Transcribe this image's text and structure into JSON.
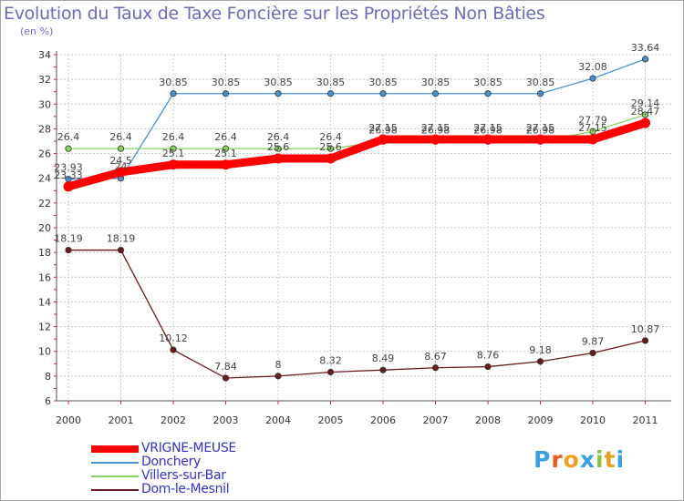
{
  "chart_data": {
    "type": "line",
    "title": "Evolution du Taux de Taxe Foncière sur les Propriétés Non Bâties",
    "unit_label": "(en %)",
    "x": [
      "2000",
      "2001",
      "2002",
      "2003",
      "2004",
      "2005",
      "2006",
      "2007",
      "2008",
      "2009",
      "2010",
      "2011"
    ],
    "ylim": [
      6,
      34
    ],
    "yticks": [
      6,
      8,
      10,
      12,
      14,
      16,
      18,
      20,
      22,
      24,
      26,
      28,
      30,
      32,
      34
    ],
    "grid": true,
    "series": [
      {
        "name": "Dom-le-Mesnil",
        "color": "#6b1a1a",
        "values": [
          18.19,
          18.19,
          10.12,
          7.84,
          8,
          8.32,
          8.49,
          8.67,
          8.76,
          9.18,
          9.87,
          10.87
        ],
        "labels": [
          "18.19",
          "18.19",
          "10.12",
          "7.84",
          "8",
          "8.32",
          "8.49",
          "8.67",
          "8.76",
          "9.18",
          "9.87",
          "10.87"
        ]
      },
      {
        "name": "Donchery",
        "color": "#4a90d0",
        "values": [
          23.93,
          24,
          30.85,
          30.85,
          30.85,
          30.85,
          30.85,
          30.85,
          30.85,
          30.85,
          32.08,
          33.64
        ],
        "labels": [
          "23.93",
          "24",
          "30.85",
          "30.85",
          "30.85",
          "30.85",
          "30.85",
          "30.85",
          "30.85",
          "30.85",
          "32.08",
          "33.64"
        ]
      },
      {
        "name": "Villers-sur-Bar",
        "color": "#88d060",
        "values": [
          26.4,
          26.4,
          26.4,
          26.4,
          26.4,
          26.4,
          26.98,
          26.98,
          26.98,
          26.98,
          27.79,
          29.14
        ],
        "labels": [
          "26.4",
          "26.4",
          "26.4",
          "26.4",
          "26.4",
          "26.4",
          "26.98",
          "26.98",
          "26.98",
          "26.98",
          "27.79",
          "29.14"
        ]
      },
      {
        "name": "VRIGNE-MEUSE",
        "color": "#ff0000",
        "values": [
          23.33,
          24.5,
          25.1,
          25.1,
          25.6,
          25.6,
          27.15,
          27.15,
          27.15,
          27.15,
          27.15,
          28.47
        ],
        "labels": [
          "23.33",
          "24.5",
          "25.1",
          "25.1",
          "25.6",
          "25.6",
          "27.15",
          "27.15",
          "27.15",
          "27.15",
          "27.15",
          "28.47"
        ]
      }
    ]
  },
  "legend": [
    {
      "name": "VRIGNE-MEUSE",
      "color": "#ff0000"
    },
    {
      "name": "Donchery",
      "color": "#4a90d0"
    },
    {
      "name": "Villers-sur-Bar",
      "color": "#88d060"
    },
    {
      "name": "Dom-le-Mesnil",
      "color": "#6b1a1a"
    }
  ],
  "logo": {
    "text": "Proxiti",
    "letters": [
      "P",
      "r",
      "o",
      "x",
      "i",
      "t",
      "i"
    ],
    "colors": [
      "#3aa0e0",
      "#e85c1a",
      "#f0a020",
      "#3aa0e0",
      "#8cc040",
      "#e8a020",
      "#3aa0e0"
    ]
  }
}
